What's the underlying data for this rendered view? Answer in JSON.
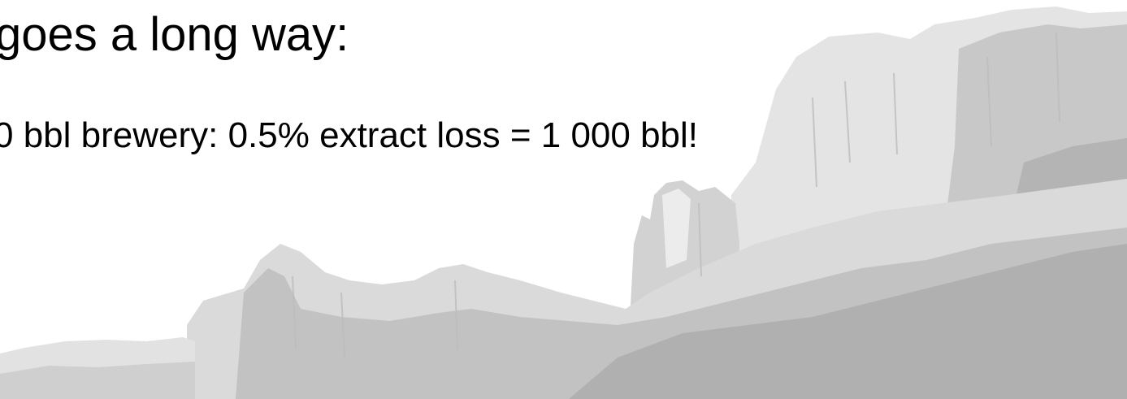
{
  "slide": {
    "heading_fragment": "goes a long way:",
    "bullet_fragment": "0 bbl brewery: 0.5% extract loss = 1 000 bbl!"
  },
  "colors": {
    "text": "#000000",
    "background": "#ffffff",
    "rock_light": "#e6e6e6",
    "rock_mid": "#c9c9c9",
    "rock_dark": "#ababab"
  },
  "decoration": {
    "background_image": "grayscale-canyon-cliffs-illustration"
  }
}
